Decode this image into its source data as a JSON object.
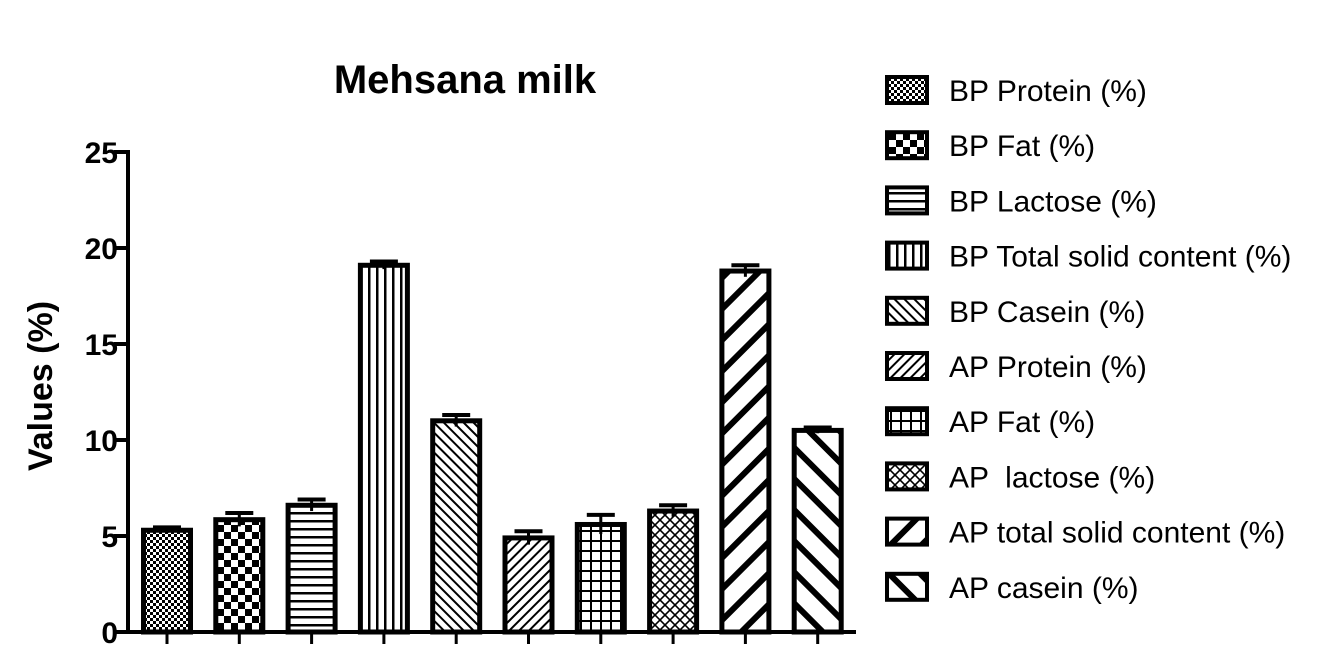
{
  "chart_data": {
    "type": "bar",
    "title": "Mehsana milk",
    "xlabel": "",
    "ylabel": "Values (%)",
    "ylim": [
      0,
      25
    ],
    "yticks": [
      0,
      5,
      10,
      15,
      20,
      25
    ],
    "grid": false,
    "legend_position": "right",
    "series": [
      {
        "name": "BP Protein (%)",
        "value": 5.3,
        "error": 0.15,
        "pattern": "fine-check"
      },
      {
        "name": "BP Fat (%)",
        "value": 5.85,
        "error": 0.35,
        "pattern": "checker"
      },
      {
        "name": "BP Lactose (%)",
        "value": 6.6,
        "error": 0.3,
        "pattern": "horizontal"
      },
      {
        "name": "BP Total solid content (%)",
        "value": 19.1,
        "error": 0.2,
        "pattern": "vertical"
      },
      {
        "name": "BP Casein (%)",
        "value": 11.0,
        "error": 0.3,
        "pattern": "diag-fine-up"
      },
      {
        "name": "AP Protein (%)",
        "value": 4.9,
        "error": 0.35,
        "pattern": "diag-fine-down"
      },
      {
        "name": "AP Fat (%)",
        "value": 5.6,
        "error": 0.5,
        "pattern": "grid"
      },
      {
        "name": "AP  lactose (%)",
        "value": 6.3,
        "error": 0.3,
        "pattern": "crosshatch"
      },
      {
        "name": "AP total solid content (%)",
        "value": 18.8,
        "error": 0.3,
        "pattern": "diag-wide-down"
      },
      {
        "name": "AP casein (%)",
        "value": 10.5,
        "error": 0.15,
        "pattern": "diag-wide-up"
      }
    ]
  }
}
